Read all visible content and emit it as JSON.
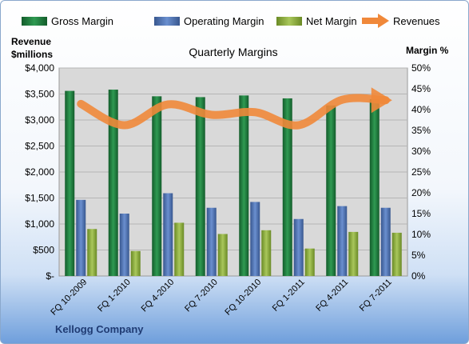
{
  "chart_data": {
    "type": "bar",
    "title": "Quarterly Margins",
    "left_axis_title": [
      "Revenue",
      "$millions"
    ],
    "right_axis_title": "Margin %",
    "company": "Kellogg Company",
    "categories": [
      "FQ 10-2009",
      "FQ 1-2010",
      "FQ 4-2010",
      "FQ 7-2010",
      "FQ 10-2010",
      "FQ 1-2011",
      "FQ 4-2011",
      "FQ 7-2011"
    ],
    "series": [
      {
        "name": "Gross Margin",
        "axis": "right",
        "type": "bar",
        "color": "#1e7a3c",
        "values": [
          44.5,
          44.8,
          43.2,
          43.0,
          43.4,
          42.7,
          41.0,
          42.5
        ]
      },
      {
        "name": "Operating Margin",
        "axis": "right",
        "type": "bar",
        "color": "#4a6fb0",
        "values": [
          18.3,
          15.0,
          19.9,
          16.4,
          17.8,
          13.7,
          16.8,
          16.4
        ]
      },
      {
        "name": "Net Margin",
        "axis": "right",
        "type": "bar",
        "color": "#8cac3c",
        "values": [
          11.3,
          6.0,
          12.8,
          10.1,
          11.0,
          6.6,
          10.6,
          10.4
        ]
      },
      {
        "name": "Revenues",
        "axis": "left",
        "type": "line",
        "color": "#f0883a",
        "values": [
          3310,
          2900,
          3300,
          3100,
          3150,
          2900,
          3390,
          3380
        ]
      }
    ],
    "left_axis": {
      "min": 0,
      "max": 4000,
      "step": 500,
      "tick_labels": [
        "$-",
        "$500",
        "$1,000",
        "$1,500",
        "$2,000",
        "$2,500",
        "$3,000",
        "$3,500",
        "$4,000"
      ]
    },
    "right_axis": {
      "min": 0,
      "max": 50,
      "step": 5,
      "tick_labels": [
        "0%",
        "5%",
        "10%",
        "15%",
        "20%",
        "25%",
        "30%",
        "35%",
        "40%",
        "45%",
        "50%"
      ]
    },
    "grid": true,
    "legend_position": "top"
  }
}
